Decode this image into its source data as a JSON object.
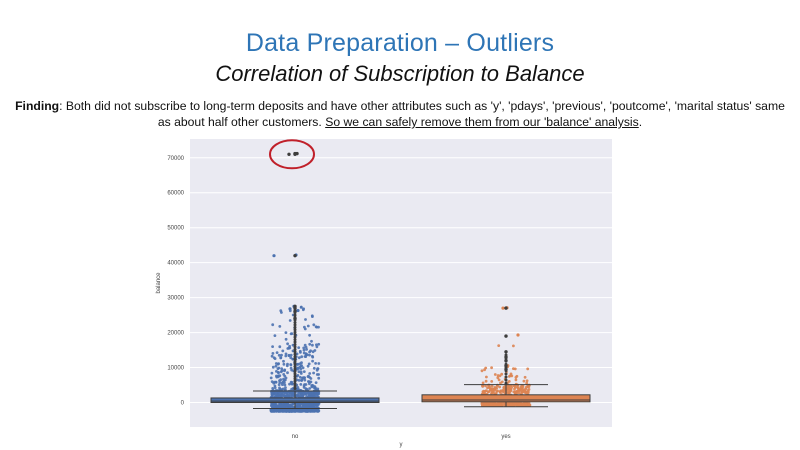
{
  "slide": {
    "title": "Data Preparation – Outliers",
    "subtitle": "Correlation of Subscription to Balance",
    "finding_label": "Finding",
    "finding_text_1": ": Both did not subscribe to long-term deposits and have other attributes such as 'y', 'pdays', 'previous', 'poutcome', 'marital status' same as about half other customers. ",
    "finding_underlined": "So we can safely remove them from our 'balance' analysis",
    "finding_end": "."
  },
  "colors": {
    "title": "#2e75b6",
    "plot_bg": "#eaeaf2",
    "no_series": "#4c72b0",
    "yes_series": "#dd8452",
    "outlier_circle": "#c0202a"
  },
  "chart_data": {
    "type": "box",
    "xlabel": "y",
    "ylabel": "balance",
    "categories": [
      "no",
      "yes"
    ],
    "yticks": [
      0,
      10000,
      20000,
      30000,
      40000,
      50000,
      60000,
      70000
    ],
    "ylim": [
      -7500,
      75000
    ],
    "grid": true,
    "boxes": [
      {
        "category": "no",
        "min": -4000,
        "q1": 0,
        "median": 400,
        "q3": 1300,
        "whisker_low": -1700,
        "whisker_high": 3300,
        "outliers": [
          27500,
          27000,
          26000,
          24000,
          42000,
          71000,
          71200
        ]
      },
      {
        "category": "yes",
        "min": -1200,
        "q1": 200,
        "median": 700,
        "q3": 2200,
        "whisker_low": -1200,
        "whisker_high": 5100,
        "outliers": [
          27000,
          19000,
          14500,
          13000,
          12000,
          10500,
          9500
        ]
      }
    ],
    "highlighted_outliers": [
      71000,
      71200
    ]
  }
}
